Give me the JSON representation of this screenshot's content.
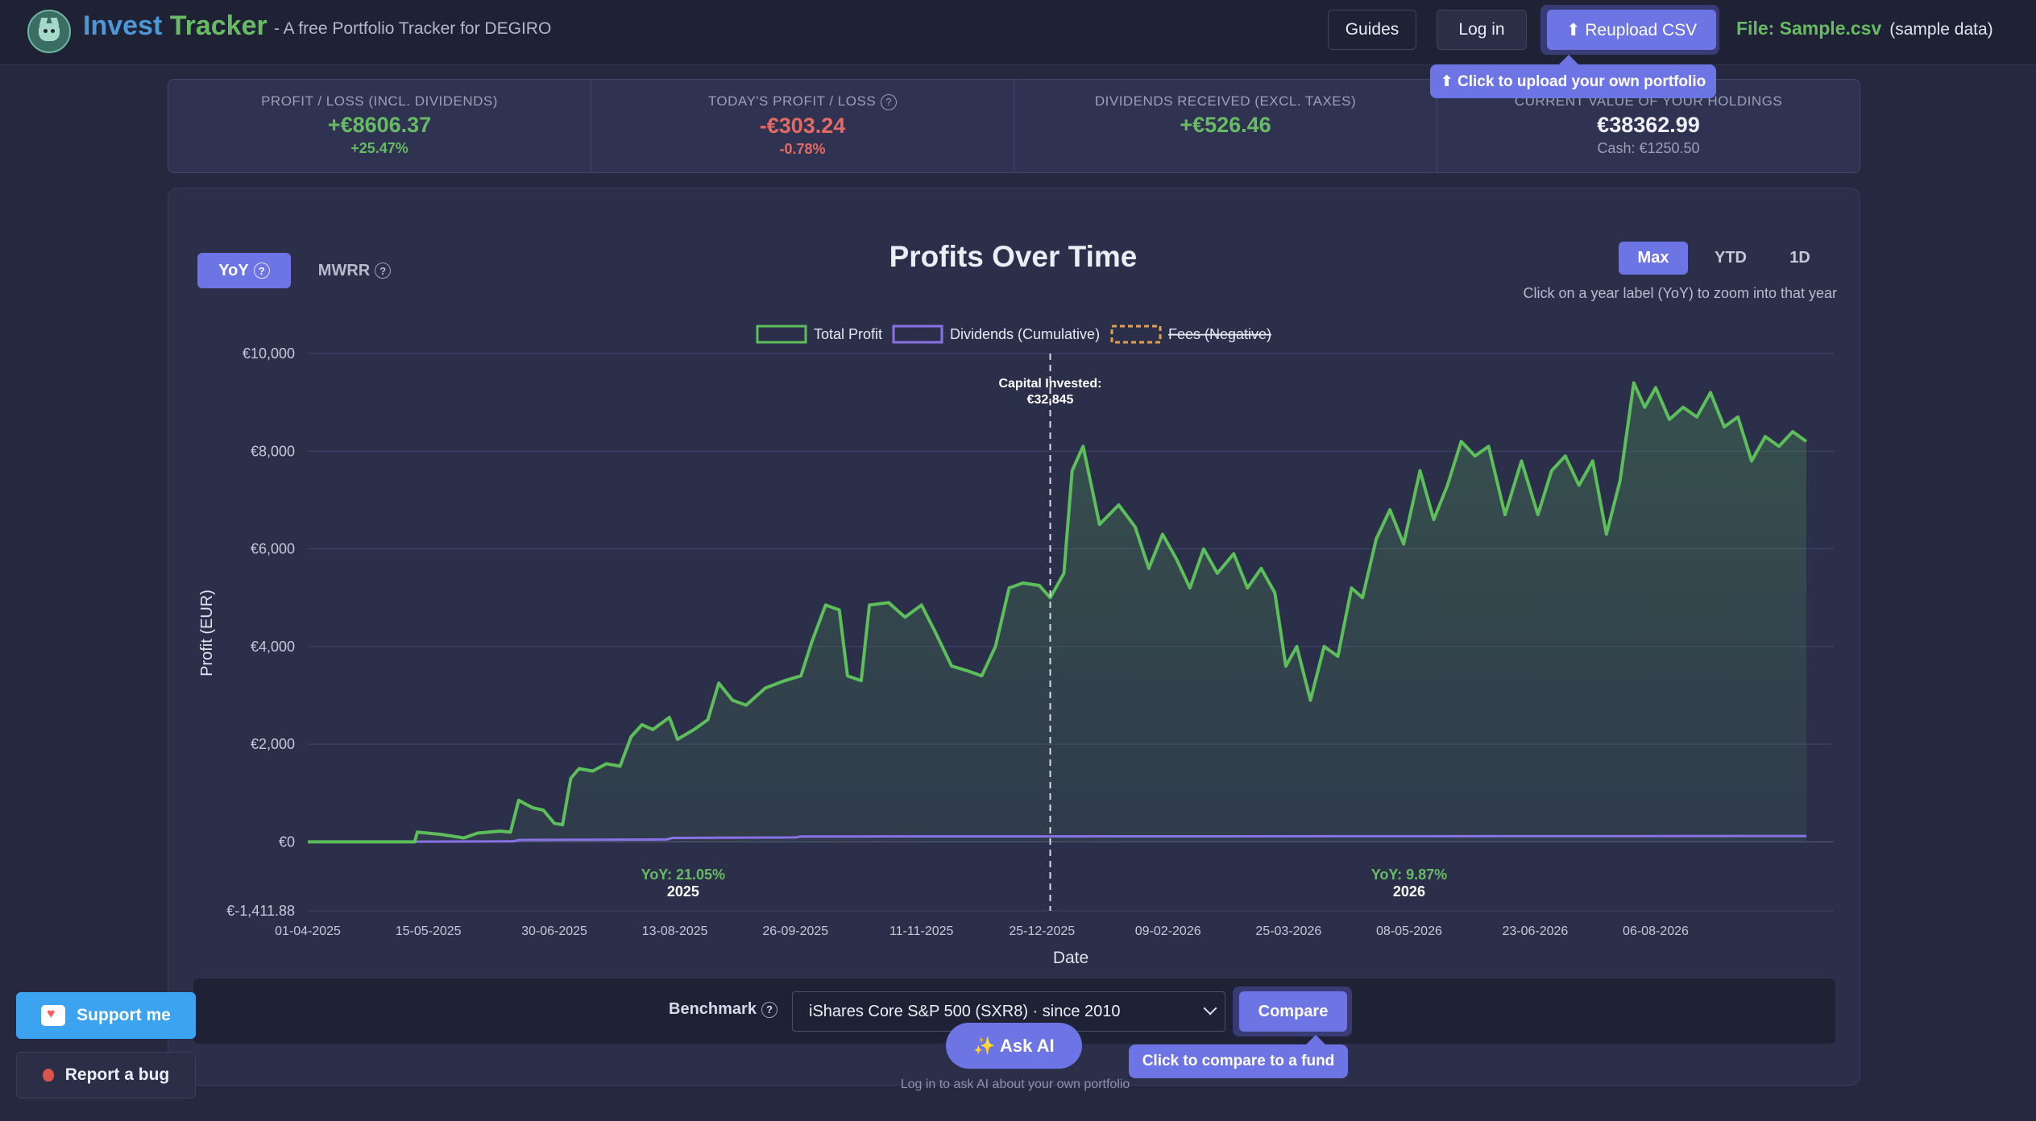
{
  "header": {
    "brand_part1": "Invest",
    "brand_part2": "Tracker",
    "tagline": "- A free Portfolio Tracker for DEGIRO",
    "guides_label": "Guides",
    "login_label": "Log in",
    "reupload_label": "⬆ Reupload CSV",
    "file_label": "File: Sample.csv",
    "sample_note": "(sample data)",
    "upload_tooltip": "⬆ Click to upload your own portfolio"
  },
  "stats": [
    {
      "label": "PROFIT / LOSS (INCL. DIVIDENDS)",
      "value": "+€8606.37",
      "sub": "+25.47%"
    },
    {
      "label": "TODAY'S PROFIT / LOSS",
      "value": "-€303.24",
      "sub": "-0.78%"
    },
    {
      "label": "DIVIDENDS RECEIVED (EXCL. TAXES)",
      "value": "+€526.46"
    },
    {
      "label": "CURRENT VALUE OF YOUR HOLDINGS",
      "value": "€38362.99",
      "sub": "Cash: €1250.50"
    }
  ],
  "controls": {
    "mode_yoy": "YoY",
    "mode_mwrr": "MWRR",
    "help_glyph": "?",
    "range_max": "Max",
    "range_ytd": "YTD",
    "range_1d": "1D",
    "zoom_hint": "Click on a year label (YoY) to zoom into that year"
  },
  "chart_data": {
    "type": "line",
    "title": "Profits Over Time",
    "xlabel": "Date",
    "ylabel": "Profit (EUR)",
    "ylim": [
      -1411.88,
      10000
    ],
    "yticks": [
      "€10,000",
      "€8,000",
      "€6,000",
      "€4,000",
      "€2,000",
      "€0",
      "€-1,411.88"
    ],
    "ytick_values": [
      10000,
      8000,
      6000,
      4000,
      2000,
      0,
      -1411.88
    ],
    "xlim": [
      "2025-04-01",
      "2026-10-10"
    ],
    "xticks": [
      "01-04-2025",
      "15-05-2025",
      "30-06-2025",
      "13-08-2025",
      "26-09-2025",
      "11-11-2025",
      "25-12-2025",
      "09-02-2026",
      "25-03-2026",
      "08-05-2026",
      "23-06-2026",
      "06-08-2026"
    ],
    "xtick_values": [
      "2025-04-01",
      "2025-05-15",
      "2025-06-30",
      "2025-08-13",
      "2025-09-26",
      "2025-11-11",
      "2025-12-25",
      "2026-02-09",
      "2026-03-25",
      "2026-05-08",
      "2026-06-23",
      "2026-08-06"
    ],
    "legend_placement": "top-center",
    "grid": true,
    "colors": {
      "total": "#5cbf5a",
      "dividends": "#8a72e6",
      "fees": "#e0a050",
      "grid": "#41456a"
    },
    "legend": [
      {
        "name": "Total Profit",
        "color": "#5cbf5a"
      },
      {
        "name": "Dividends (Cumulative)",
        "color": "#8a72e6"
      },
      {
        "name": "Fees (Negative)",
        "color": "#e0a050",
        "hidden": true
      }
    ],
    "series": [
      {
        "name": "Total Profit",
        "points": [
          [
            "2025-04-01",
            0
          ],
          [
            "2025-04-20",
            0
          ],
          [
            "2025-05-10",
            0
          ],
          [
            "2025-05-11",
            200
          ],
          [
            "2025-05-20",
            150
          ],
          [
            "2025-05-28",
            80
          ],
          [
            "2025-06-02",
            180
          ],
          [
            "2025-06-10",
            220
          ],
          [
            "2025-06-14",
            200
          ],
          [
            "2025-06-17",
            850
          ],
          [
            "2025-06-22",
            700
          ],
          [
            "2025-06-26",
            650
          ],
          [
            "2025-06-30",
            380
          ],
          [
            "2025-07-03",
            350
          ],
          [
            "2025-07-06",
            1300
          ],
          [
            "2025-07-09",
            1500
          ],
          [
            "2025-07-14",
            1450
          ],
          [
            "2025-07-19",
            1600
          ],
          [
            "2025-07-24",
            1550
          ],
          [
            "2025-07-28",
            2150
          ],
          [
            "2025-08-01",
            2400
          ],
          [
            "2025-08-05",
            2300
          ],
          [
            "2025-08-11",
            2550
          ],
          [
            "2025-08-14",
            2100
          ],
          [
            "2025-08-20",
            2300
          ],
          [
            "2025-08-25",
            2500
          ],
          [
            "2025-08-29",
            3250
          ],
          [
            "2025-09-03",
            2900
          ],
          [
            "2025-09-08",
            2800
          ],
          [
            "2025-09-15",
            3150
          ],
          [
            "2025-09-22",
            3300
          ],
          [
            "2025-09-28",
            3400
          ],
          [
            "2025-10-02",
            4100
          ],
          [
            "2025-10-07",
            4850
          ],
          [
            "2025-10-12",
            4750
          ],
          [
            "2025-10-15",
            3400
          ],
          [
            "2025-10-20",
            3300
          ],
          [
            "2025-10-23",
            4850
          ],
          [
            "2025-10-30",
            4900
          ],
          [
            "2025-11-05",
            4600
          ],
          [
            "2025-11-11",
            4850
          ],
          [
            "2025-11-16",
            4300
          ],
          [
            "2025-11-22",
            3600
          ],
          [
            "2025-11-28",
            3500
          ],
          [
            "2025-12-03",
            3400
          ],
          [
            "2025-12-08",
            4000
          ],
          [
            "2025-12-13",
            5200
          ],
          [
            "2025-12-18",
            5300
          ],
          [
            "2025-12-24",
            5250
          ],
          [
            "2025-12-28",
            5000
          ],
          [
            "2026-01-02",
            5500
          ],
          [
            "2026-01-05",
            7600
          ],
          [
            "2026-01-09",
            8100
          ],
          [
            "2026-01-15",
            6500
          ],
          [
            "2026-01-22",
            6900
          ],
          [
            "2026-01-28",
            6450
          ],
          [
            "2026-02-02",
            5600
          ],
          [
            "2026-02-07",
            6300
          ],
          [
            "2026-02-12",
            5800
          ],
          [
            "2026-02-17",
            5200
          ],
          [
            "2026-02-22",
            6000
          ],
          [
            "2026-02-27",
            5500
          ],
          [
            "2026-03-05",
            5900
          ],
          [
            "2026-03-10",
            5200
          ],
          [
            "2026-03-15",
            5600
          ],
          [
            "2026-03-20",
            5100
          ],
          [
            "2026-03-24",
            3600
          ],
          [
            "2026-03-28",
            4000
          ],
          [
            "2026-04-02",
            2900
          ],
          [
            "2026-04-07",
            4000
          ],
          [
            "2026-04-12",
            3800
          ],
          [
            "2026-04-17",
            5200
          ],
          [
            "2026-04-21",
            5000
          ],
          [
            "2026-04-26",
            6200
          ],
          [
            "2026-05-01",
            6800
          ],
          [
            "2026-05-06",
            6100
          ],
          [
            "2026-05-12",
            7600
          ],
          [
            "2026-05-17",
            6600
          ],
          [
            "2026-05-22",
            7300
          ],
          [
            "2026-05-27",
            8200
          ],
          [
            "2026-06-01",
            7900
          ],
          [
            "2026-06-06",
            8100
          ],
          [
            "2026-06-12",
            6700
          ],
          [
            "2026-06-18",
            7800
          ],
          [
            "2026-06-24",
            6700
          ],
          [
            "2026-06-29",
            7600
          ],
          [
            "2026-07-04",
            7900
          ],
          [
            "2026-07-09",
            7300
          ],
          [
            "2026-07-14",
            7800
          ],
          [
            "2026-07-19",
            6300
          ],
          [
            "2026-07-24",
            7400
          ],
          [
            "2026-07-29",
            9400
          ],
          [
            "2026-08-02",
            8900
          ],
          [
            "2026-08-06",
            9300
          ],
          [
            "2026-08-11",
            8650
          ],
          [
            "2026-08-16",
            8900
          ],
          [
            "2026-08-21",
            8700
          ],
          [
            "2026-08-26",
            9200
          ],
          [
            "2026-08-31",
            8500
          ],
          [
            "2026-09-05",
            8700
          ],
          [
            "2026-09-10",
            7800
          ],
          [
            "2026-09-15",
            8300
          ],
          [
            "2026-09-20",
            8100
          ],
          [
            "2026-09-25",
            8400
          ],
          [
            "2026-09-30",
            8200
          ]
        ]
      },
      {
        "name": "Dividends (Cumulative)",
        "points": [
          [
            "2025-04-01",
            0
          ],
          [
            "2025-05-10",
            0
          ],
          [
            "2025-05-11",
            5
          ],
          [
            "2025-06-15",
            10
          ],
          [
            "2025-06-17",
            40
          ],
          [
            "2025-08-10",
            50
          ],
          [
            "2025-08-12",
            80
          ],
          [
            "2025-09-26",
            90
          ],
          [
            "2025-09-28",
            110
          ],
          [
            "2026-09-30",
            120
          ]
        ]
      }
    ],
    "annotations": [
      {
        "type": "vline",
        "x": "2025-12-28",
        "label_line1": "Capital Invested:",
        "label_line2": "€32,845"
      }
    ],
    "yoy_labels": [
      {
        "x": "2025-08-16",
        "pct": "YoY: 21.05%",
        "year": "2025"
      },
      {
        "x": "2026-05-08",
        "pct": "YoY: 9.87%",
        "year": "2026"
      }
    ]
  },
  "benchmark": {
    "label": "Benchmark",
    "selected": "iShares Core S&P 500 (SXR8) · since 2010",
    "compare_label": "Compare",
    "compare_tooltip": "Click to compare to a fund"
  },
  "ai": {
    "button_label": "✨ Ask AI",
    "hint": "Log in to ask AI about your own portfolio"
  },
  "footer": {
    "support_label": "Support me",
    "bug_label": "Report a bug"
  }
}
